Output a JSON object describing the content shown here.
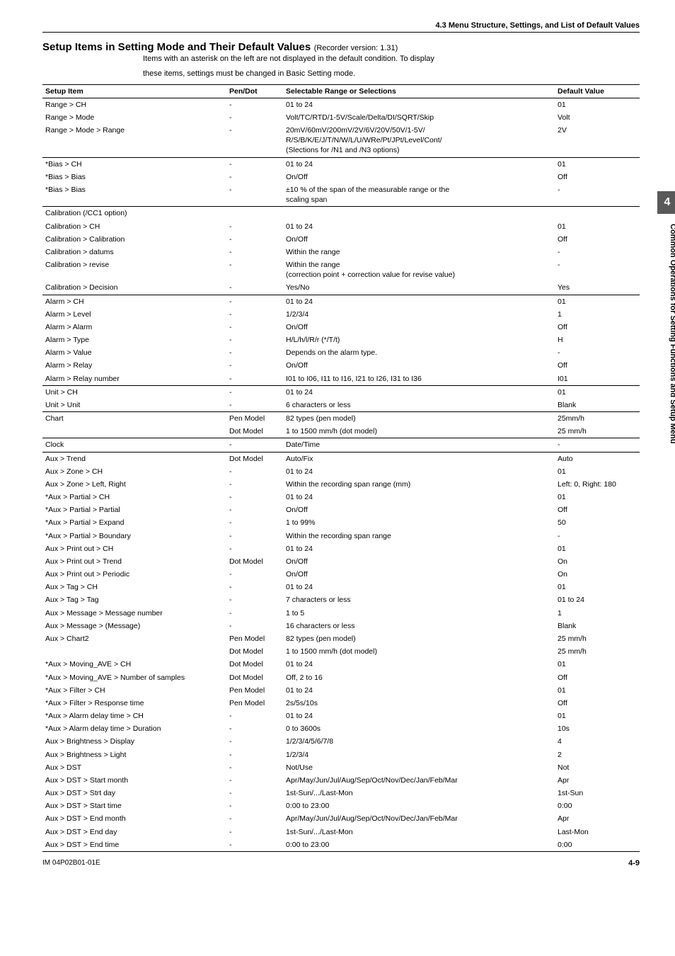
{
  "section_header": "4.3  Menu Structure, Settings, and List of Default Values",
  "main_title": "Setup Items in Setting Mode and Their Default Values",
  "recorder_version": "(Recorder version: 1.31)",
  "intro_line1": "Items with an asterisk on the left are not displayed in the default condition. To display",
  "intro_line2": "these items, settings must be changed in Basic Setting mode.",
  "columns": {
    "c1": "Setup Item",
    "c2": "Pen/Dot",
    "c3": "Selectable Range or Selections",
    "c4": "Default Value"
  },
  "rows": [
    {
      "item": "Range > CH",
      "pen": "-",
      "sel": "01 to 24",
      "def": "01",
      "sep": false
    },
    {
      "item": "Range > Mode",
      "pen": "-",
      "sel": "Volt/TC/RTD/1-5V/Scale/Delta/DI/SQRT/Skip",
      "def": "Volt",
      "sep": false
    },
    {
      "item": "Range > Mode > Range",
      "pen": "-",
      "sel": "20mV/60mV/200mV/2V/6V/20V/50V/1-5V/\nR/S/B/K/E/J/T/N/W/L/U/WRe/Pt/JPt/Level/Cont/\n(Slections for /N1 and /N3 options)",
      "def": "2V",
      "sep": true
    },
    {
      "item": "*Bias > CH",
      "pen": "-",
      "sel": "01 to 24",
      "def": "01",
      "sep": false
    },
    {
      "item": "*Bias > Bias",
      "pen": "-",
      "sel": "On/Off",
      "def": "Off",
      "sep": false
    },
    {
      "item": "*Bias > Bias",
      "pen": "-",
      "sel": "±10 % of the span of the measurable range or the\nscaling span",
      "def": "-",
      "sep": true
    },
    {
      "item": "Calibration (/CC1 option)",
      "pen": "",
      "sel": "",
      "def": "",
      "sep": false
    },
    {
      "item": "Calibration > CH",
      "pen": "-",
      "sel": "01 to 24",
      "def": "01",
      "sep": false
    },
    {
      "item": "Calibration > Calibration",
      "pen": "-",
      "sel": "On/Off",
      "def": "Off",
      "sep": false
    },
    {
      "item": "Calibration > datums",
      "pen": "-",
      "sel": "Within the range",
      "def": "-",
      "sep": false
    },
    {
      "item": "Calibration > revise",
      "pen": "-",
      "sel": "Within the range\n(correction point + correction value for revise value)",
      "def": "-",
      "sep": false
    },
    {
      "item": "Calibration > Decision",
      "pen": "-",
      "sel": "Yes/No",
      "def": "Yes",
      "sep": true
    },
    {
      "item": "Alarm > CH",
      "pen": "-",
      "sel": "01 to 24",
      "def": "01",
      "sep": false
    },
    {
      "item": "Alarm > Level",
      "pen": "-",
      "sel": "1/2/3/4",
      "def": "1",
      "sep": false
    },
    {
      "item": "Alarm > Alarm",
      "pen": "-",
      "sel": "On/Off",
      "def": "Off",
      "sep": false
    },
    {
      "item": "Alarm > Type",
      "pen": "-",
      "sel": "H/L/h/l/R/r (*/T/t)",
      "def": "H",
      "sep": false
    },
    {
      "item": "Alarm > Value",
      "pen": "-",
      "sel": "Depends on the alarm type.",
      "def": "-",
      "sep": false
    },
    {
      "item": "Alarm > Relay",
      "pen": "-",
      "sel": "On/Off",
      "def": "Off",
      "sep": false
    },
    {
      "item": "Alarm > Relay number",
      "pen": "-",
      "sel": "I01 to I06, I11 to I16, I21 to I26, I31 to I36",
      "def": "I01",
      "sep": true
    },
    {
      "item": "Unit > CH",
      "pen": "-",
      "sel": "01 to 24",
      "def": "01",
      "sep": false
    },
    {
      "item": "Unit > Unit",
      "pen": "-",
      "sel": "6 characters or less",
      "def": "Blank",
      "sep": true
    },
    {
      "item": "Chart",
      "pen": "Pen Model",
      "sel": "82 types (pen model)",
      "def": "25mm/h",
      "sep": false
    },
    {
      "item": "",
      "pen": "Dot Model",
      "sel": "1 to 1500 mm/h (dot model)",
      "def": "25 mm/h",
      "sep": true
    },
    {
      "item": "Clock",
      "pen": "-",
      "sel": "Date/Time",
      "def": "-",
      "sep": true
    },
    {
      "item": "Aux > Trend",
      "pen": "Dot Model",
      "sel": "Auto/Fix",
      "def": "Auto",
      "sep": false
    },
    {
      "item": "Aux > Zone > CH",
      "pen": "-",
      "sel": "01 to 24",
      "def": "01",
      "sep": false
    },
    {
      "item": "Aux > Zone > Left, Right",
      "pen": "-",
      "sel": "Within the recording span range (mm)",
      "def": "Left: 0, Right: 180",
      "sep": false
    },
    {
      "item": "*Aux > Partial > CH",
      "pen": "-",
      "sel": "01 to 24",
      "def": "01",
      "sep": false
    },
    {
      "item": "*Aux > Partial > Partial",
      "pen": "-",
      "sel": "On/Off",
      "def": "Off",
      "sep": false
    },
    {
      "item": "*Aux > Partial > Expand",
      "pen": "-",
      "sel": "1 to 99%",
      "def": "50",
      "sep": false
    },
    {
      "item": "*Aux > Partial > Boundary",
      "pen": "-",
      "sel": "Within the recording span range",
      "def": "-",
      "sep": false
    },
    {
      "item": "Aux > Print out > CH",
      "pen": "-",
      "sel": "01 to 24",
      "def": "01",
      "sep": false
    },
    {
      "item": "Aux > Print out > Trend",
      "pen": "Dot Model",
      "sel": "On/Off",
      "def": "On",
      "sep": false
    },
    {
      "item": "Aux > Print out > Periodic",
      "pen": "-",
      "sel": "On/Off",
      "def": "On",
      "sep": false
    },
    {
      "item": "Aux > Tag > CH",
      "pen": "-",
      "sel": "01 to 24",
      "def": "01",
      "sep": false
    },
    {
      "item": "Aux > Tag > Tag",
      "pen": "-",
      "sel": "7 characters or less",
      "def": "01 to 24",
      "sep": false
    },
    {
      "item": "Aux > Message > Message number",
      "pen": "-",
      "sel": "1 to 5",
      "def": "1",
      "sep": false
    },
    {
      "item": "Aux > Message > (Message)",
      "pen": "-",
      "sel": "16 characters or less",
      "def": "Blank",
      "sep": false
    },
    {
      "item": "Aux > Chart2",
      "pen": "Pen Model",
      "sel": "82 types (pen model)",
      "def": "25 mm/h",
      "sep": false
    },
    {
      "item": "",
      "pen": "Dot Model",
      "sel": "1 to 1500 mm/h (dot model)",
      "def": "25 mm/h",
      "sep": false
    },
    {
      "item": "*Aux > Moving_AVE > CH",
      "pen": "Dot Model",
      "sel": "01 to 24",
      "def": "01",
      "sep": false
    },
    {
      "item": "*Aux > Moving_AVE > Number of samples",
      "pen": "Dot Model",
      "sel": "Off, 2 to 16",
      "def": "Off",
      "sep": false
    },
    {
      "item": "*Aux > Filter > CH",
      "pen": "Pen Model",
      "sel": "01 to 24",
      "def": "01",
      "sep": false
    },
    {
      "item": "*Aux > Filter > Response time",
      "pen": "Pen Model",
      "sel": "2s/5s/10s",
      "def": "Off",
      "sep": false
    },
    {
      "item": "*Aux > Alarm delay time > CH",
      "pen": "-",
      "sel": "01 to 24",
      "def": "01",
      "sep": false
    },
    {
      "item": "*Aux > Alarm delay time > Duration",
      "pen": "-",
      "sel": "0 to 3600s",
      "def": "10s",
      "sep": false
    },
    {
      "item": "Aux > Brightness > Display",
      "pen": "-",
      "sel": "1/2/3/4/5/6/7/8",
      "def": "4",
      "sep": false
    },
    {
      "item": "Aux > Brightness > Light",
      "pen": "-",
      "sel": "1/2/3/4",
      "def": "2",
      "sep": false
    },
    {
      "item": "Aux > DST",
      "pen": "-",
      "sel": "Not/Use",
      "def": "Not",
      "sep": false
    },
    {
      "item": "Aux > DST > Start month",
      "pen": "-",
      "sel": "Apr/May/Jun/Jul/Aug/Sep/Oct/Nov/Dec/Jan/Feb/Mar",
      "def": "Apr",
      "sep": false
    },
    {
      "item": "Aux > DST > Strt day",
      "pen": "-",
      "sel": "1st-Sun/.../Last-Mon",
      "def": "1st-Sun",
      "sep": false
    },
    {
      "item": "Aux > DST > Start time",
      "pen": "-",
      "sel": "0:00 to 23:00",
      "def": "0:00",
      "sep": false
    },
    {
      "item": "Aux > DST > End month",
      "pen": "-",
      "sel": "Apr/May/Jun/Jul/Aug/Sep/Oct/Nov/Dec/Jan/Feb/Mar",
      "def": "Apr",
      "sep": false
    },
    {
      "item": "Aux > DST > End day",
      "pen": "-",
      "sel": "1st-Sun/.../Last-Mon",
      "def": "Last-Mon",
      "sep": false
    },
    {
      "item": "Aux > DST > End time",
      "pen": "-",
      "sel": "0:00 to 23:00",
      "def": "0:00",
      "sep": true
    }
  ],
  "side_tab": "4",
  "side_text": "Common Operations for Setting Functions and Setup Menu",
  "footer_left": "IM 04P02B01-01E",
  "footer_right": "4-9"
}
